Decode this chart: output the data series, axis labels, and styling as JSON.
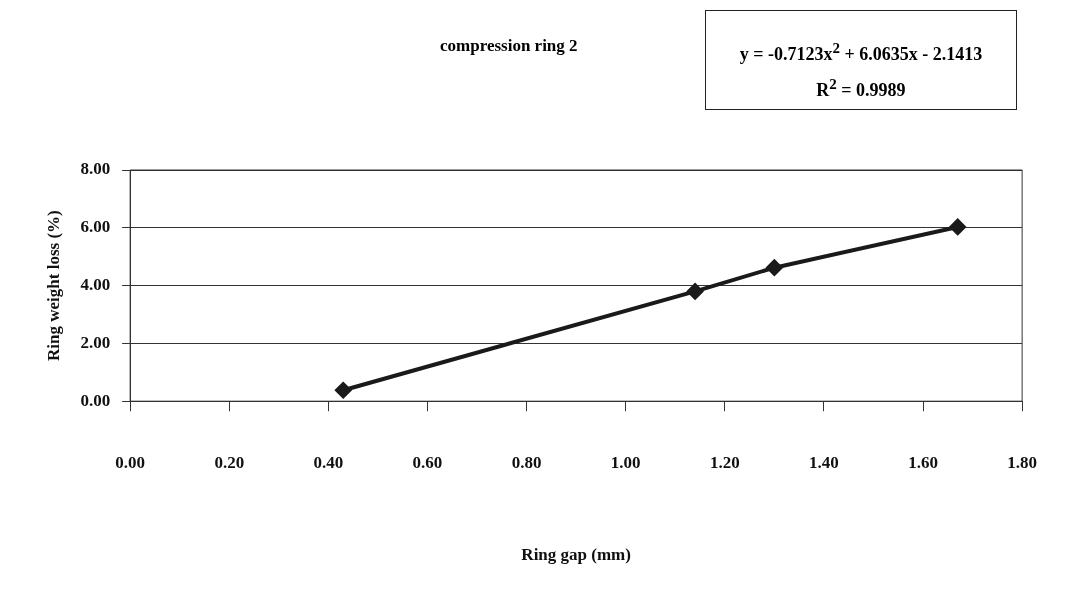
{
  "chart_data": {
    "type": "line",
    "title": "compression ring 2",
    "xlabel": "Ring gap (mm)",
    "ylabel": "Ring weight loss (%)",
    "annotations": [
      "y = -0.7123x$^{2}$ + 6.0635x - 2.1413",
      "R$^{2}$ = 0.9989"
    ],
    "x": [
      0.43,
      1.14,
      1.3,
      1.67
    ],
    "series": [
      {
        "color": "#1a1a1a",
        "values": [
          0.38,
          3.8,
          4.62,
          6.03
        ]
      }
    ],
    "xlim": [
      0,
      1.8
    ],
    "xticks": [
      {
        "value": 0,
        "label": "0.00"
      },
      {
        "value": 0.2,
        "label": "0.20"
      },
      {
        "value": 0.4,
        "label": "0.40"
      },
      {
        "value": 0.6,
        "label": "0.60"
      },
      {
        "value": 0.8,
        "label": "0.80"
      },
      {
        "value": 1.0,
        "label": "1.00"
      },
      {
        "value": 1.2,
        "label": "1.20"
      },
      {
        "value": 1.4,
        "label": "1.40"
      },
      {
        "value": 1.6,
        "label": "1.60"
      },
      {
        "value": 1.8,
        "label": "1.80"
      }
    ],
    "ylim": [
      0,
      8
    ],
    "yticks": [
      {
        "value": 0,
        "label": "0.00"
      },
      {
        "value": 2,
        "label": "2.00"
      },
      {
        "value": 4,
        "label": "4.00"
      },
      {
        "value": 6,
        "label": "6.00"
      },
      {
        "value": 8,
        "label": "8.00"
      }
    ],
    "grid": "y",
    "legend": false,
    "marker": "diamond",
    "line_style": "solid"
  }
}
